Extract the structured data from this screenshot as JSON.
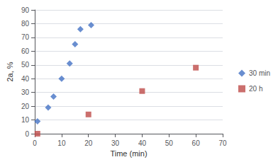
{
  "chart_data": {
    "type": "scatter",
    "xlabel": "Time (min)",
    "ylabel": "2a, %",
    "series": [
      {
        "name": "30 min",
        "color": "#4472C4",
        "marker": "diamond",
        "x": [
          1,
          5,
          7,
          10,
          13,
          15,
          17,
          21
        ],
        "values": [
          9,
          19,
          27,
          40,
          51,
          65,
          76,
          79
        ]
      },
      {
        "name": "20 h",
        "color": "#BE4B48",
        "marker": "square",
        "x": [
          1,
          20,
          40,
          60
        ],
        "values": [
          0,
          14,
          31,
          48
        ]
      }
    ],
    "xlim": [
      0,
      70
    ],
    "ylim": [
      0,
      90
    ],
    "xticks": [
      0,
      10,
      20,
      30,
      40,
      50,
      60,
      70
    ],
    "yticks": [
      0,
      10,
      20,
      30,
      40,
      50,
      60,
      70,
      80,
      90
    ],
    "grid": true,
    "legend": "right"
  }
}
